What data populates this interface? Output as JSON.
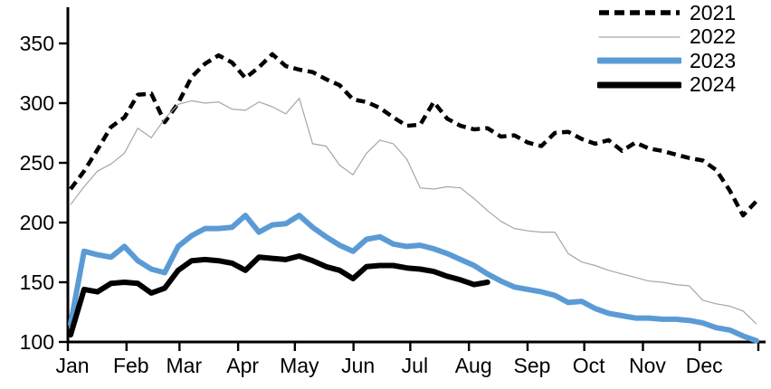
{
  "chart_data": {
    "type": "line",
    "title": "",
    "xlabel": "",
    "ylabel": "",
    "x_unit": "week-of-year",
    "x_categories": [
      "Jan",
      "Feb",
      "Mar",
      "Apr",
      "May",
      "Jun",
      "Jul",
      "Aug",
      "Sep",
      "Oct",
      "Nov",
      "Dec"
    ],
    "y_ticks": [
      100,
      150,
      200,
      250,
      300,
      350
    ],
    "y_range": [
      100,
      362
    ],
    "grid": false,
    "legend_position": "top-right",
    "axis_color": "#000000",
    "series": [
      {
        "name": "2021",
        "color": "#000000",
        "style": "dashed",
        "thickness": 4.5,
        "values": [
          228,
          243,
          261,
          280,
          288,
          307,
          308,
          284,
          300,
          322,
          333,
          340,
          334,
          321,
          330,
          341,
          331,
          328,
          326,
          320,
          315,
          303,
          301,
          296,
          288,
          281,
          282,
          301,
          287,
          281,
          278,
          279,
          272,
          273,
          267,
          264,
          275,
          276,
          270,
          266,
          269,
          260,
          267,
          262,
          260,
          257,
          254,
          252,
          244,
          227,
          206,
          218
        ]
      },
      {
        "name": "2022",
        "color": "#a6a6a6",
        "style": "solid",
        "thickness": 1.2,
        "values": [
          215,
          230,
          243,
          249,
          258,
          279,
          271,
          287,
          299,
          302,
          300,
          301,
          295,
          294,
          301,
          297,
          291,
          304,
          266,
          264,
          248,
          240,
          258,
          269,
          266,
          253,
          229,
          228,
          230,
          229,
          220,
          210,
          201,
          195,
          193,
          192,
          192,
          174,
          167,
          164,
          160,
          157,
          154,
          151,
          150,
          148,
          147,
          135,
          132,
          130,
          126,
          115
        ]
      },
      {
        "name": "2023",
        "color": "#5b9bd5",
        "style": "solid",
        "thickness": 6,
        "values": [
          115,
          176,
          173,
          171,
          180,
          168,
          161,
          158,
          180,
          189,
          195,
          195,
          196,
          206,
          192,
          198,
          199,
          206,
          196,
          188,
          181,
          176,
          186,
          188,
          182,
          180,
          181,
          178,
          174,
          169,
          164,
          157,
          151,
          146,
          144,
          142,
          139,
          133,
          134,
          128,
          124,
          122,
          120,
          120,
          119,
          119,
          118,
          116,
          112,
          110,
          105,
          101
        ]
      },
      {
        "name": "2024",
        "color": "#000000",
        "style": "solid",
        "thickness": 6,
        "values": [
          106,
          144,
          142,
          149,
          150,
          149,
          141,
          145,
          160,
          168,
          169,
          168,
          166,
          160,
          171,
          170,
          169,
          172,
          168,
          163,
          160,
          153,
          163,
          164,
          164,
          162,
          161,
          159,
          155,
          152,
          148,
          150
        ]
      }
    ]
  }
}
